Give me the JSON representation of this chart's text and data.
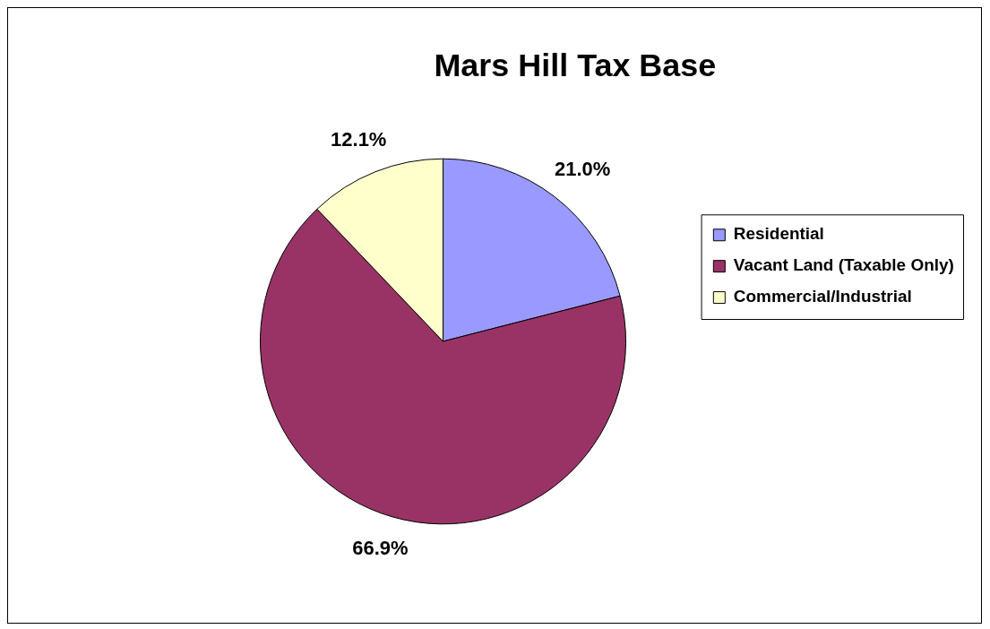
{
  "chart_data": {
    "type": "pie",
    "title": "Mars Hill Tax Base",
    "categories": [
      "Residential",
      "Vacant Land (Taxable Only)",
      "Commercial/Industrial"
    ],
    "values": [
      21.0,
      66.9,
      12.1
    ],
    "colors": [
      "#9999ff",
      "#993366",
      "#ffffcc"
    ],
    "value_labels": [
      "21.0%",
      "66.9%",
      "12.1%"
    ],
    "legend": "right"
  }
}
